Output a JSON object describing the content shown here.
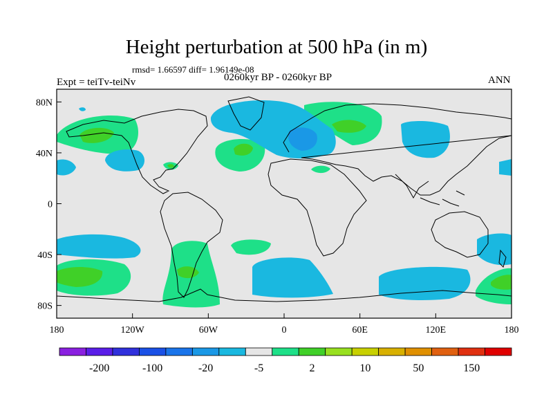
{
  "title": "Height perturbation at 500 hPa (in m)",
  "stats": "rmsd= 1.66597 diff= 1.96149e-08",
  "experiment": "Expt = teiTv-teiNv",
  "period": "0260kyr BP - 0260kyr BP",
  "season": "ANN",
  "axes": {
    "x_ticks": [
      "180",
      "120W",
      "60W",
      "0",
      "60E",
      "120E",
      "180"
    ],
    "y_ticks": [
      "80N",
      "40N",
      "0",
      "40S",
      "80S"
    ]
  },
  "colorbar": {
    "colors": [
      "#8a20e0",
      "#5a1ee8",
      "#3030dc",
      "#1a50e6",
      "#1a74ea",
      "#1a98e6",
      "#1ab8e0",
      "#e6e6e6",
      "#1ee088",
      "#40d028",
      "#98e020",
      "#c8d000",
      "#d8b000",
      "#e09000",
      "#e06010",
      "#e03010",
      "#e00000"
    ],
    "labels": [
      "-200",
      "-100",
      "-20",
      "-5",
      "2",
      "10",
      "50",
      "150"
    ]
  },
  "map_colors": {
    "background": "#e6e6e6",
    "cyan": "#1ab8e0",
    "blue": "#1a98e6",
    "teal": "#1ee088",
    "green": "#40d028",
    "land": "#000000"
  }
}
